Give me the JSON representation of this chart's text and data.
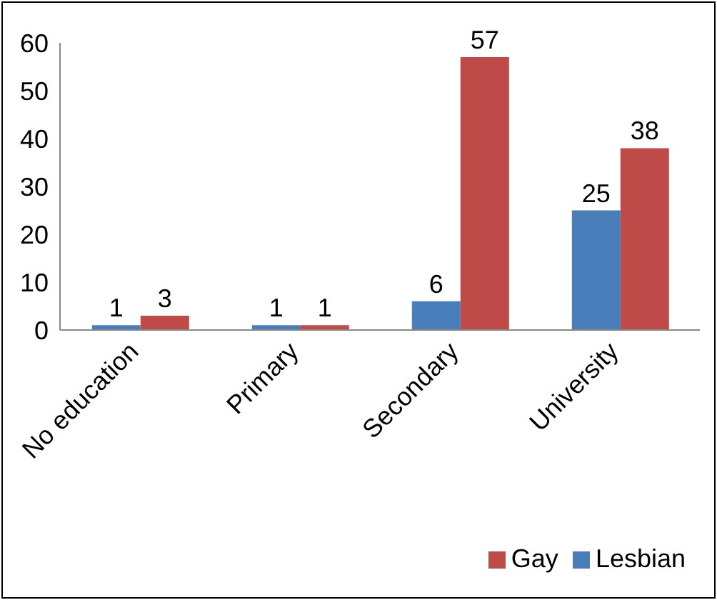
{
  "chart_data": {
    "type": "bar",
    "categories": [
      "No education",
      "Primary",
      "Secondary",
      "University"
    ],
    "series": [
      {
        "name": "Lesbian",
        "color": "#4a7ebb",
        "values": [
          1,
          1,
          6,
          25
        ]
      },
      {
        "name": "Gay",
        "color": "#be4b48",
        "values": [
          3,
          1,
          57,
          38
        ]
      }
    ],
    "ylim": [
      0,
      60
    ],
    "yticks": [
      0,
      10,
      20,
      30,
      40,
      50,
      60
    ],
    "grid": false,
    "legend": "bottom right",
    "data_labels": true
  }
}
